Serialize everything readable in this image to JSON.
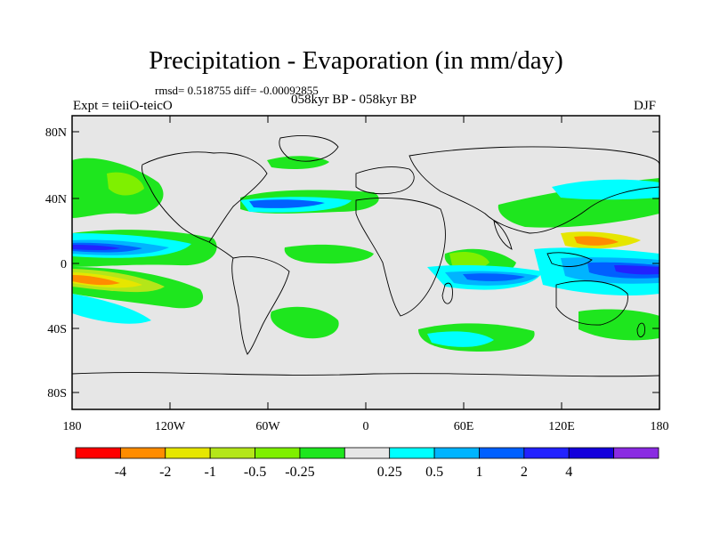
{
  "header": {
    "title": "Precipitation - Evaporation (in mm/day)",
    "stats": "rmsd= 0.518755  diff= -0.00092855",
    "experiment": "Expt = teiiO-teicO",
    "period": "058kyr BP - 058kyr BP",
    "season": "DJF"
  },
  "axes": {
    "lat_ticks": [
      "80N",
      "40N",
      "0",
      "40S",
      "80S"
    ],
    "lon_ticks": [
      "180",
      "120W",
      "60W",
      "0",
      "60E",
      "120E",
      "180"
    ]
  },
  "colorbar": {
    "colors": [
      "#ff0000",
      "#ff8c00",
      "#e6e600",
      "#b4e619",
      "#7ff000",
      "#1ee61e",
      "#e6e6e6",
      "#00ffff",
      "#00b4ff",
      "#0060ff",
      "#2222ff",
      "#1400dc",
      "#8a2be2"
    ],
    "labels": [
      "-4",
      "-2",
      "-1",
      "-0.5",
      "-0.25",
      "0.25",
      "0.5",
      "1",
      "2",
      "4"
    ]
  },
  "colors": {
    "background": "#e6e6e6",
    "coast": "#000000"
  }
}
